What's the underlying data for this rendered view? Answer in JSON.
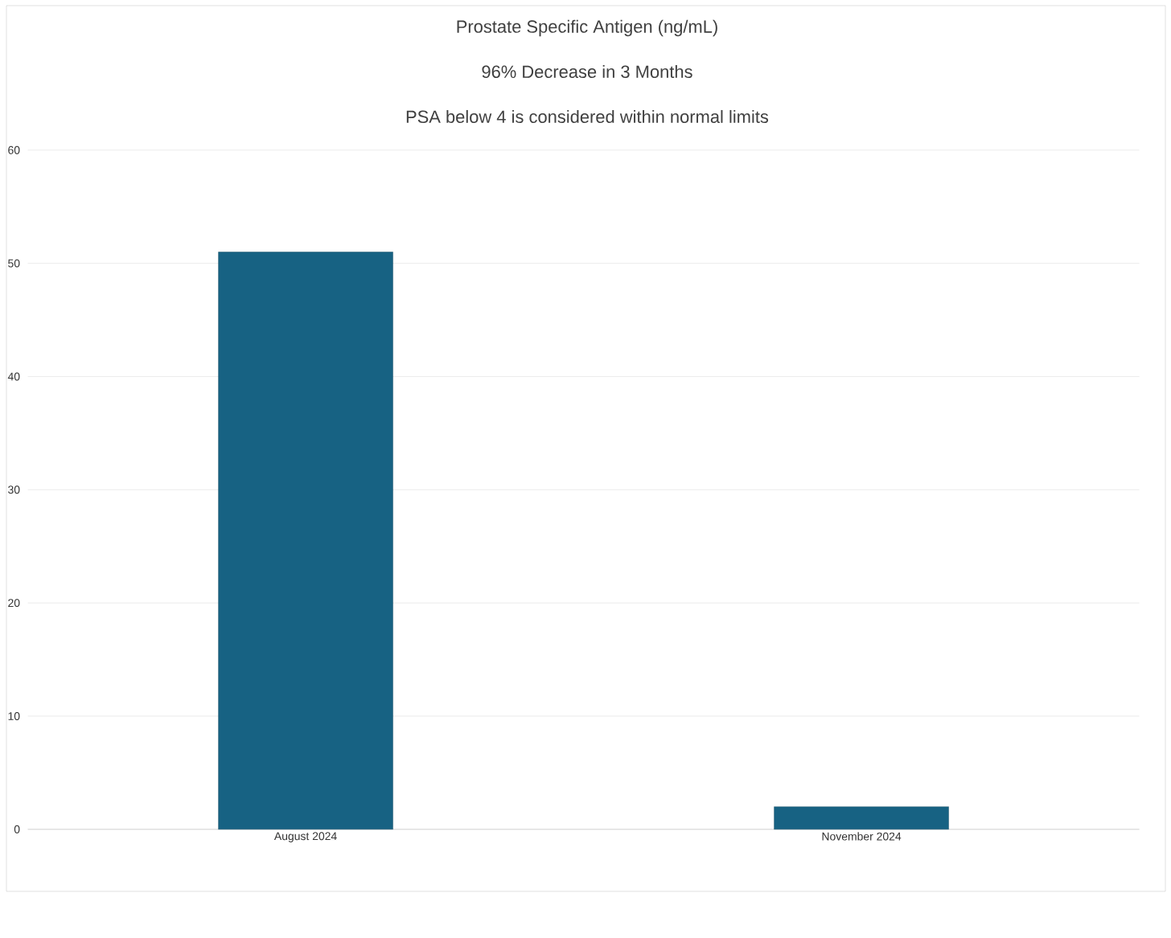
{
  "chart_data": {
    "type": "bar",
    "title": "Prostate Specific Antigen (ng/mL)",
    "subtitle": "96% Decrease in 3 Months",
    "annotations": [
      "PSA below 4 is considered within normal limits"
    ],
    "categories": [
      "August 2024",
      "November 2024"
    ],
    "values": [
      51,
      2
    ],
    "color": "#176283",
    "ylim": [
      0,
      60
    ],
    "yticks": [
      0,
      10,
      20,
      30,
      40,
      50,
      60
    ],
    "grid": "y"
  }
}
